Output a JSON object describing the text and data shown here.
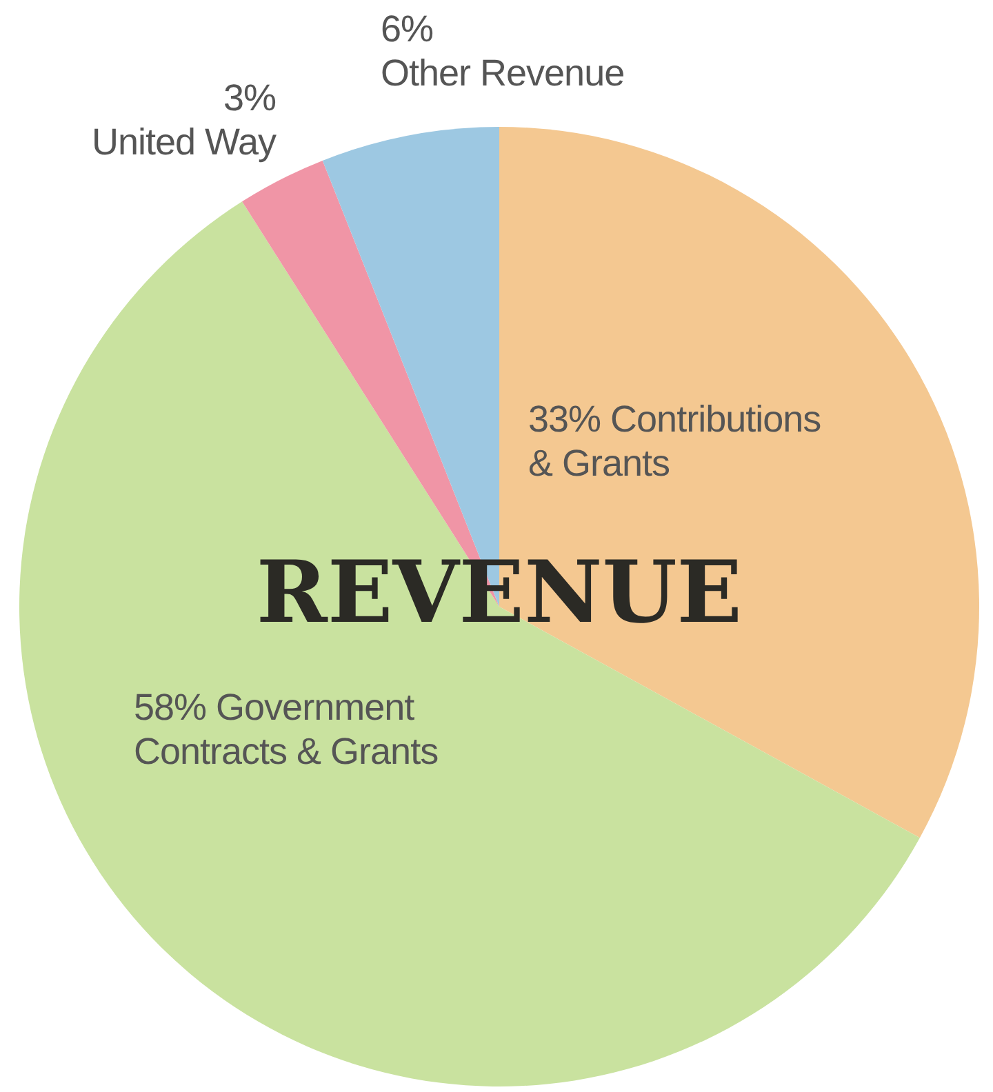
{
  "chart_data": {
    "type": "pie",
    "title": "REVENUE",
    "categories": [
      "Contributions & Grants",
      "Government Contracts & Grants",
      "United Way",
      "Other Revenue"
    ],
    "values": [
      33,
      58,
      3,
      6
    ],
    "value_labels": [
      "33%",
      "58%",
      "3%",
      "6%"
    ],
    "colors": [
      "#f4c891",
      "#c9e29f",
      "#f095a6",
      "#9dc8e2"
    ],
    "legend": false
  }
}
